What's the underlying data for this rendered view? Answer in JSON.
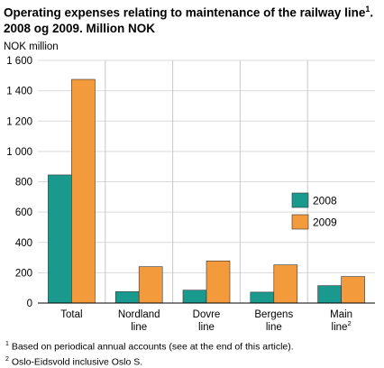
{
  "title": {
    "line1": "Operating expenses relating to maintenance of the railway line",
    "line1_sup": "1",
    "line2": "2008 og 2009. Million NOK"
  },
  "chart_data": {
    "type": "bar",
    "ylabel": "NOK million",
    "ylim": [
      0,
      1600
    ],
    "yticks": [
      0,
      200,
      400,
      600,
      800,
      1000,
      1200,
      1400,
      1600
    ],
    "ytick_labels": [
      "0",
      "200",
      "400",
      "600",
      "800",
      "1 000",
      "1 200",
      "1 400",
      "1 600"
    ],
    "grid": "vertical separators between categories",
    "legend_position": "right, inside plot",
    "categories": [
      {
        "lines": [
          "Total"
        ],
        "sup": ""
      },
      {
        "lines": [
          "Nordland",
          "line"
        ],
        "sup": ""
      },
      {
        "lines": [
          "Dovre",
          "line"
        ],
        "sup": ""
      },
      {
        "lines": [
          "Bergens",
          "line"
        ],
        "sup": ""
      },
      {
        "lines": [
          "Main",
          "line"
        ],
        "sup": "2"
      }
    ],
    "series": [
      {
        "name": "2008",
        "color": "#1a9a8f",
        "values": [
          845,
          75,
          85,
          72,
          115
        ]
      },
      {
        "name": "2009",
        "color": "#f39a3d",
        "values": [
          1475,
          240,
          278,
          252,
          175
        ]
      }
    ]
  },
  "footnotes": [
    {
      "sup": "1",
      "text": "Based on periodical annual accounts (see at the end of this article)."
    },
    {
      "sup": "2",
      "text": "Oslo-Eidsvold inclusive Oslo S."
    }
  ]
}
